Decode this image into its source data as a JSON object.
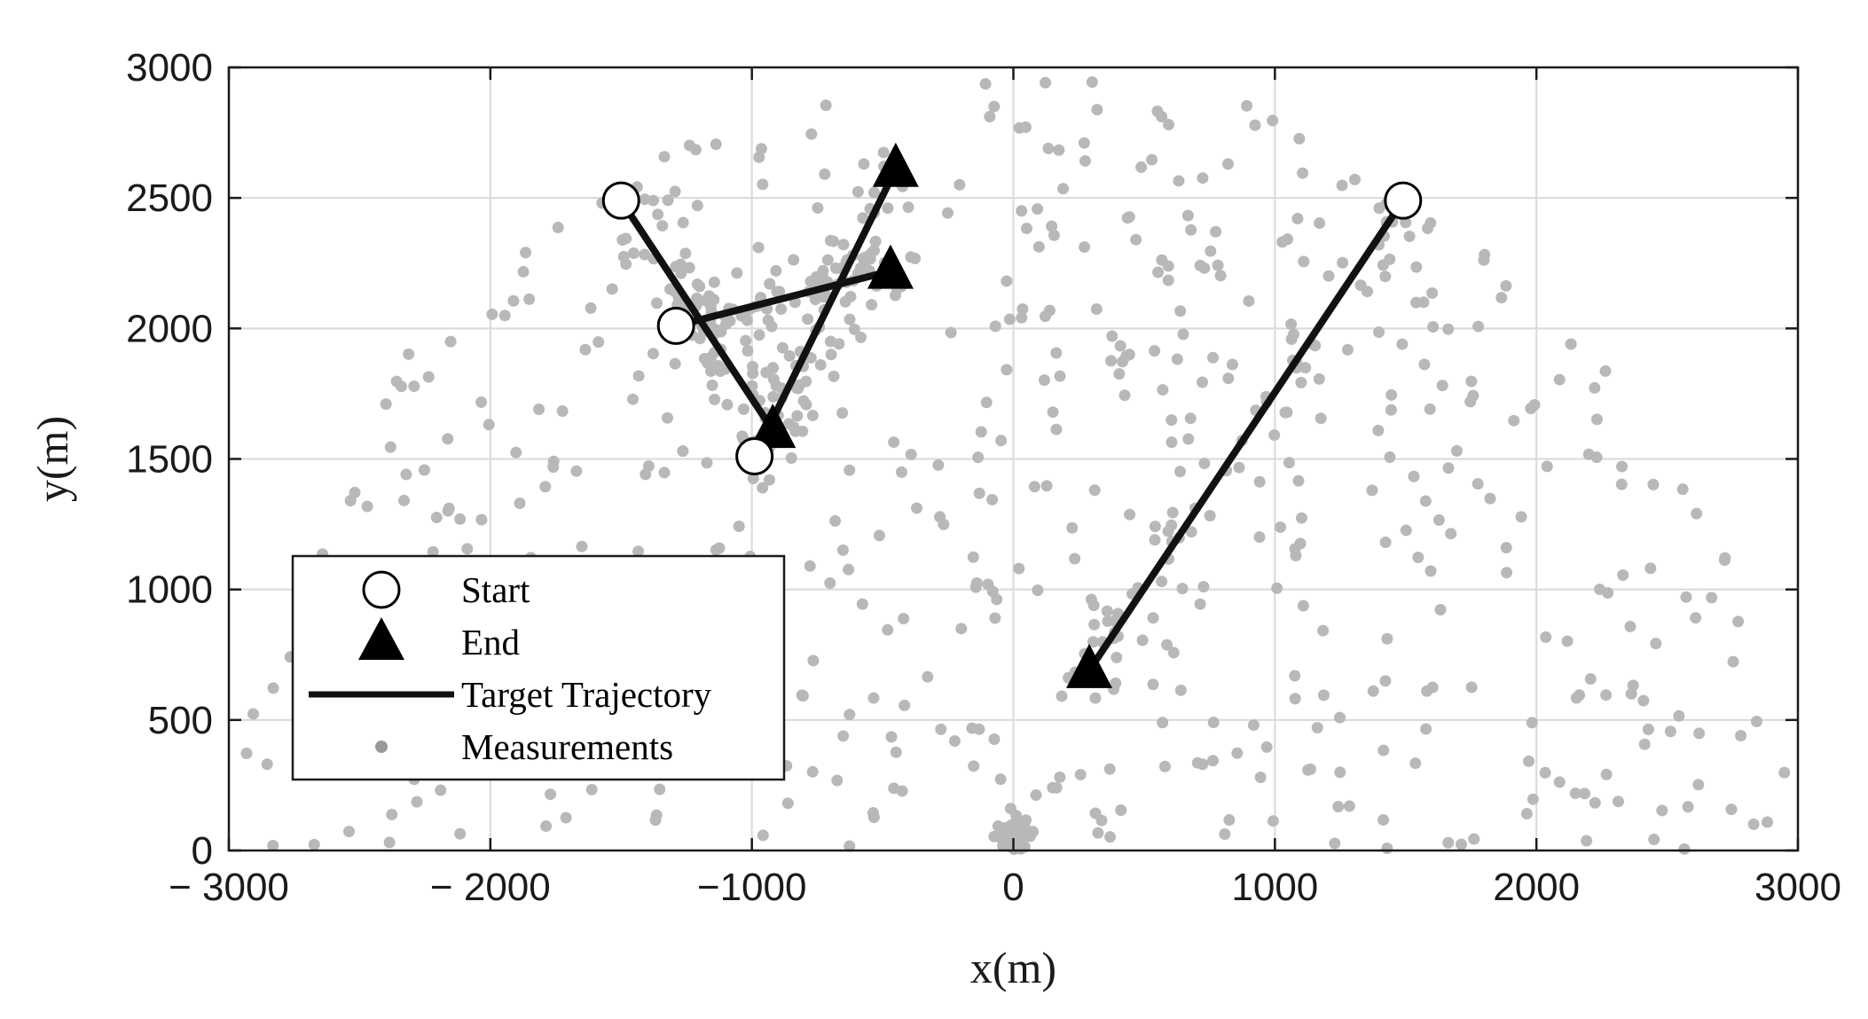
{
  "chart_data": {
    "type": "scatter",
    "xlabel": "x(m)",
    "ylabel": "y(m)",
    "xlim": [
      -3000,
      3000
    ],
    "ylim": [
      0,
      3000
    ],
    "x_ticks": [
      -3000,
      -2000,
      -1000,
      0,
      1000,
      2000,
      3000
    ],
    "y_ticks": [
      0,
      500,
      1000,
      1500,
      2000,
      2500,
      3000
    ],
    "x_tick_labels": [
      "− 3000",
      "− 2000",
      "−1000",
      "0",
      "1000",
      "2000",
      "3000"
    ],
    "y_tick_labels": [
      "0",
      "500",
      "1000",
      "1500",
      "2000",
      "2500",
      "3000"
    ],
    "grid": true,
    "legend_position": "lower-left",
    "legend": [
      {
        "key": "start",
        "label": "Start"
      },
      {
        "key": "end",
        "label": "End"
      },
      {
        "key": "trajectory",
        "label": "Target Trajectory"
      },
      {
        "key": "measurements",
        "label": "Measurements"
      }
    ],
    "colors": {
      "trajectory": "#111111",
      "measurements": "#b8b8b8",
      "grid": "#d9d9d9"
    },
    "trajectories": [
      {
        "start": [
          -1500,
          2490
        ],
        "end": [
          -920,
          1610
        ]
      },
      {
        "start": [
          -1290,
          2010
        ],
        "end": [
          -470,
          2220
        ]
      },
      {
        "start": [
          -990,
          1510
        ],
        "end": [
          -450,
          2610
        ]
      },
      {
        "start": [
          1490,
          2490
        ],
        "end": [
          290,
          690
        ]
      }
    ],
    "measurements": {
      "count": 900,
      "clusters": [
        {
          "center": [
            0,
            60
          ],
          "spread": [
            60,
            40
          ],
          "count": 55
        },
        {
          "center": [
            -1500,
            2490
          ],
          "spread": [
            0,
            0
          ],
          "count": 0
        }
      ]
    }
  }
}
